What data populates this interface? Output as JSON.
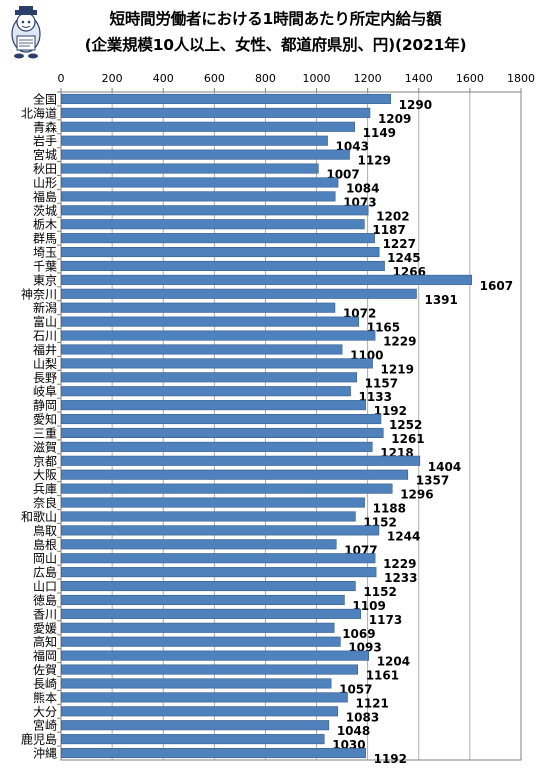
{
  "chart_data": {
    "type": "bar",
    "orientation": "horizontal",
    "title": "短時間労働者における1時間あたり所定内給与額",
    "subtitle": "(企業規模10人以上、女性、都道府県別、円)(2021年)",
    "categories": [
      "全国",
      "北海道",
      "青森",
      "岩手",
      "宮城",
      "秋田",
      "山形",
      "福島",
      "茨城",
      "栃木",
      "群馬",
      "埼玉",
      "千葉",
      "東京",
      "神奈川",
      "新潟",
      "富山",
      "石川",
      "福井",
      "山梨",
      "長野",
      "岐阜",
      "静岡",
      "愛知",
      "三重",
      "滋賀",
      "京都",
      "大阪",
      "兵庫",
      "奈良",
      "和歌山",
      "鳥取",
      "島根",
      "岡山",
      "広島",
      "山口",
      "徳島",
      "香川",
      "愛媛",
      "高知",
      "福岡",
      "佐賀",
      "長崎",
      "熊本",
      "大分",
      "宮崎",
      "鹿児島",
      "沖縄"
    ],
    "values": [
      1290,
      1209,
      1149,
      1043,
      1129,
      1007,
      1084,
      1073,
      1202,
      1187,
      1227,
      1245,
      1266,
      1607,
      1391,
      1072,
      1165,
      1229,
      1100,
      1219,
      1157,
      1133,
      1192,
      1252,
      1261,
      1218,
      1404,
      1357,
      1296,
      1188,
      1152,
      1244,
      1077,
      1229,
      1233,
      1152,
      1109,
      1173,
      1069,
      1093,
      1204,
      1161,
      1057,
      1121,
      1083,
      1048,
      1030,
      1192
    ],
    "x_ticks": [
      "0",
      "200",
      "400",
      "600",
      "800",
      "1000",
      "1200",
      "1400",
      "1600",
      "1800"
    ],
    "xlim": [
      0,
      1800
    ],
    "grid": true,
    "legend": "none",
    "bar_color": "#4f81bd",
    "bar_border_color": "#385d8a"
  }
}
